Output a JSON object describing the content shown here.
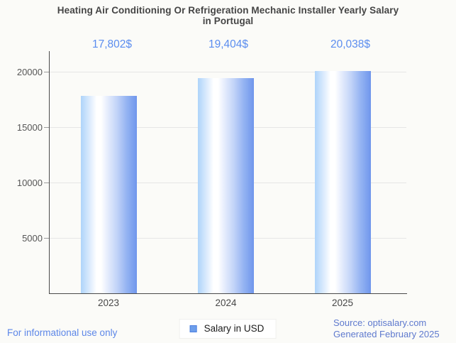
{
  "title": {
    "line1": "Heating Air Conditioning Or Refrigeration Mechanic Installer Yearly Salary",
    "line2": "in Portugal"
  },
  "chart_data": {
    "type": "bar",
    "categories": [
      "2023",
      "2024",
      "2025"
    ],
    "values": [
      17802,
      19404,
      20038
    ],
    "value_labels": [
      "17,802$",
      "19,404$",
      "20,038$"
    ],
    "series_name": "Salary in USD",
    "title": "Heating Air Conditioning Or Refrigeration Mechanic Installer Yearly Salary in Portugal",
    "xlabel": "",
    "ylabel": "",
    "y_ticks": [
      5000,
      10000,
      15000,
      20000
    ],
    "ylim": [
      0,
      21800
    ],
    "grid": "horizontal-only",
    "legend_position": "bottom-center",
    "colors": {
      "bar_left": "#aed4fa",
      "bar_highlight": "#ffffff",
      "bar_right": "#6f96ec",
      "value_label": "#5b8def",
      "gridline": "#e6e6e6",
      "axis_line": "#4a4a4a",
      "axis_text": "#565656",
      "title_text": "#454545",
      "legend_swatch": "#6d9eeb"
    }
  },
  "legend": {
    "label": "Salary in USD"
  },
  "footer": {
    "disclaimer": "For informational use only",
    "source_line1": "Source: optisalary.com",
    "source_line2": "Generated February 2025"
  }
}
